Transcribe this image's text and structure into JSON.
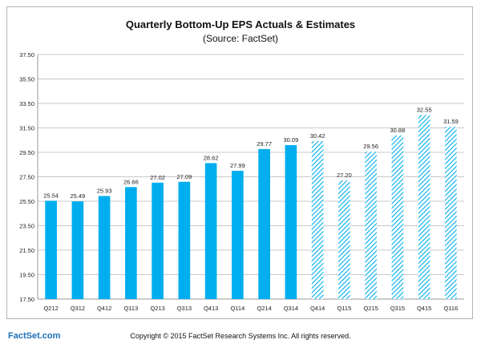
{
  "chart_data": {
    "type": "bar",
    "title": "Quarterly Bottom-Up EPS Actuals & Estimates",
    "subtitle": "(Source: FactSet)",
    "categories": [
      "Q212",
      "Q312",
      "Q412",
      "Q113",
      "Q213",
      "Q313",
      "Q413",
      "Q114",
      "Q214",
      "Q314",
      "Q414",
      "Q115",
      "Q215",
      "Q315",
      "Q415",
      "Q116"
    ],
    "values": [
      25.54,
      25.49,
      25.93,
      26.66,
      27.02,
      27.09,
      28.62,
      27.99,
      29.77,
      30.09,
      30.42,
      27.2,
      29.56,
      30.88,
      32.55,
      31.59
    ],
    "value_labels": [
      "25.54",
      "25.49",
      "25.93",
      "26.66",
      "27.02",
      "27.09",
      "28.62",
      "27.99",
      "29.77",
      "30.09",
      "30.42",
      "27.20",
      "29.56",
      "30.88",
      "32.55",
      "31.59"
    ],
    "series": [
      {
        "kind": "actual",
        "from_index": 0,
        "to_index": 9,
        "style": "solid"
      },
      {
        "kind": "estimate",
        "from_index": 10,
        "to_index": 15,
        "style": "hatched"
      }
    ],
    "ylim": [
      17.5,
      37.5
    ],
    "yticks": [
      "17.50",
      "19.50",
      "21.50",
      "23.50",
      "25.50",
      "27.50",
      "29.50",
      "31.50",
      "33.50",
      "35.50",
      "37.50"
    ],
    "grid": "horizontal",
    "legend": "none",
    "colors": {
      "bar": "#00aeef",
      "hatch": "#00aeef",
      "grid": "#c8c8c8",
      "axis": "#999999"
    }
  },
  "footer": {
    "brand": "FactSet.com",
    "copyright": "Copyright © 2015 FactSet Research Systems Inc. All rights reserved."
  }
}
